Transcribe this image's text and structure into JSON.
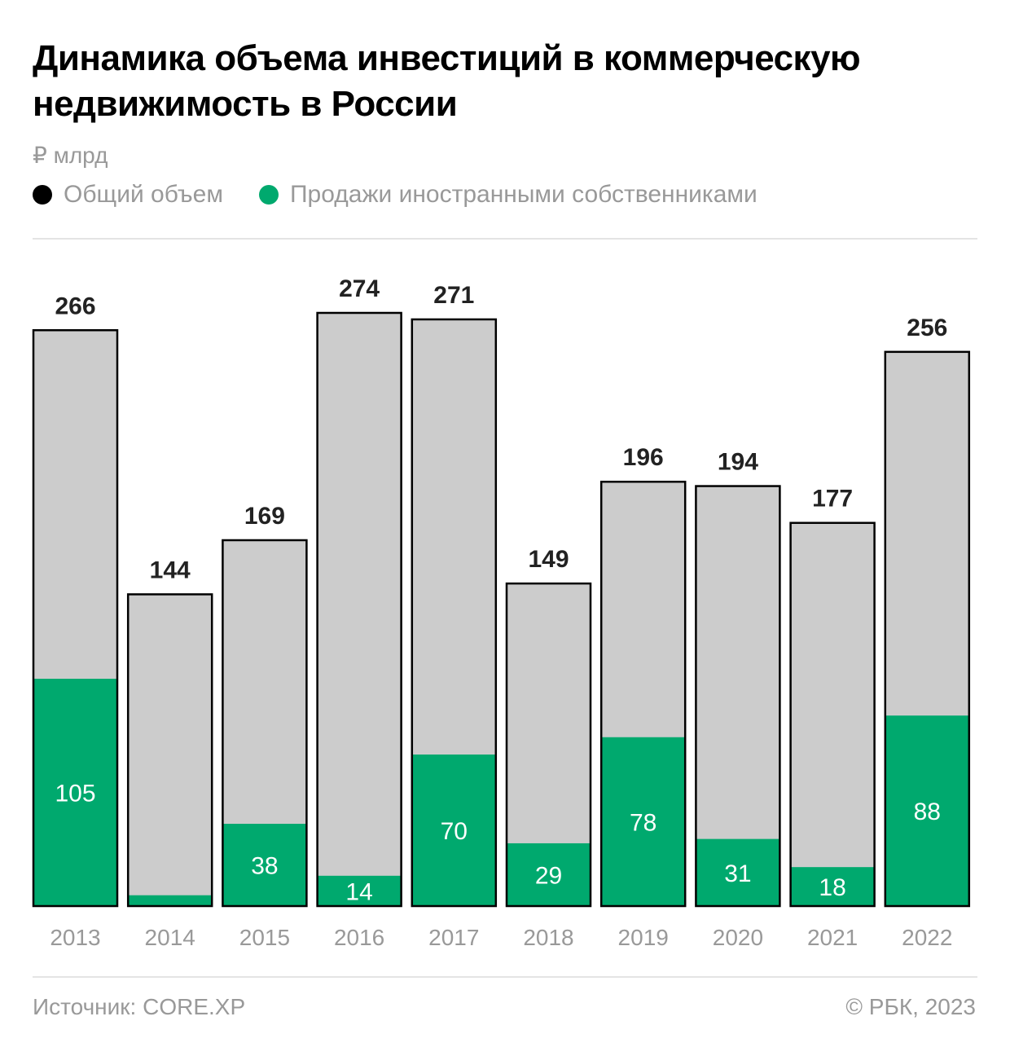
{
  "chart_data": {
    "type": "bar",
    "stacked": "overlay",
    "title": "Динамика объема инвестиций в коммерческую недвижимость в России",
    "unit": "₽ млрд",
    "xlabel": "",
    "ylabel": "",
    "categories": [
      "2013",
      "2014",
      "2015",
      "2016",
      "2017",
      "2018",
      "2019",
      "2020",
      "2021",
      "2022"
    ],
    "series": [
      {
        "name": "Общий объем",
        "color": "#cccccc",
        "legend_color": "#000000",
        "values": [
          266,
          144,
          169,
          274,
          271,
          149,
          196,
          194,
          177,
          256
        ],
        "labels": [
          "266",
          "144",
          "169",
          "274",
          "271",
          "149",
          "196",
          "194",
          "177",
          "256"
        ]
      },
      {
        "name": "Продажи иностранными собственниками",
        "color": "#00a96e",
        "legend_color": "#00a96e",
        "values": [
          105,
          5,
          38,
          14,
          70,
          29,
          78,
          31,
          18,
          88
        ],
        "labels": [
          "105",
          "",
          "38",
          "14",
          "70",
          "29",
          "78",
          "31",
          "18",
          "88"
        ]
      }
    ],
    "ylim": [
      0,
      274
    ],
    "grid": false,
    "legend_position": "top-left"
  },
  "footer": {
    "source": "Источник: CORE.XP",
    "copyright": "© РБК, 2023"
  }
}
